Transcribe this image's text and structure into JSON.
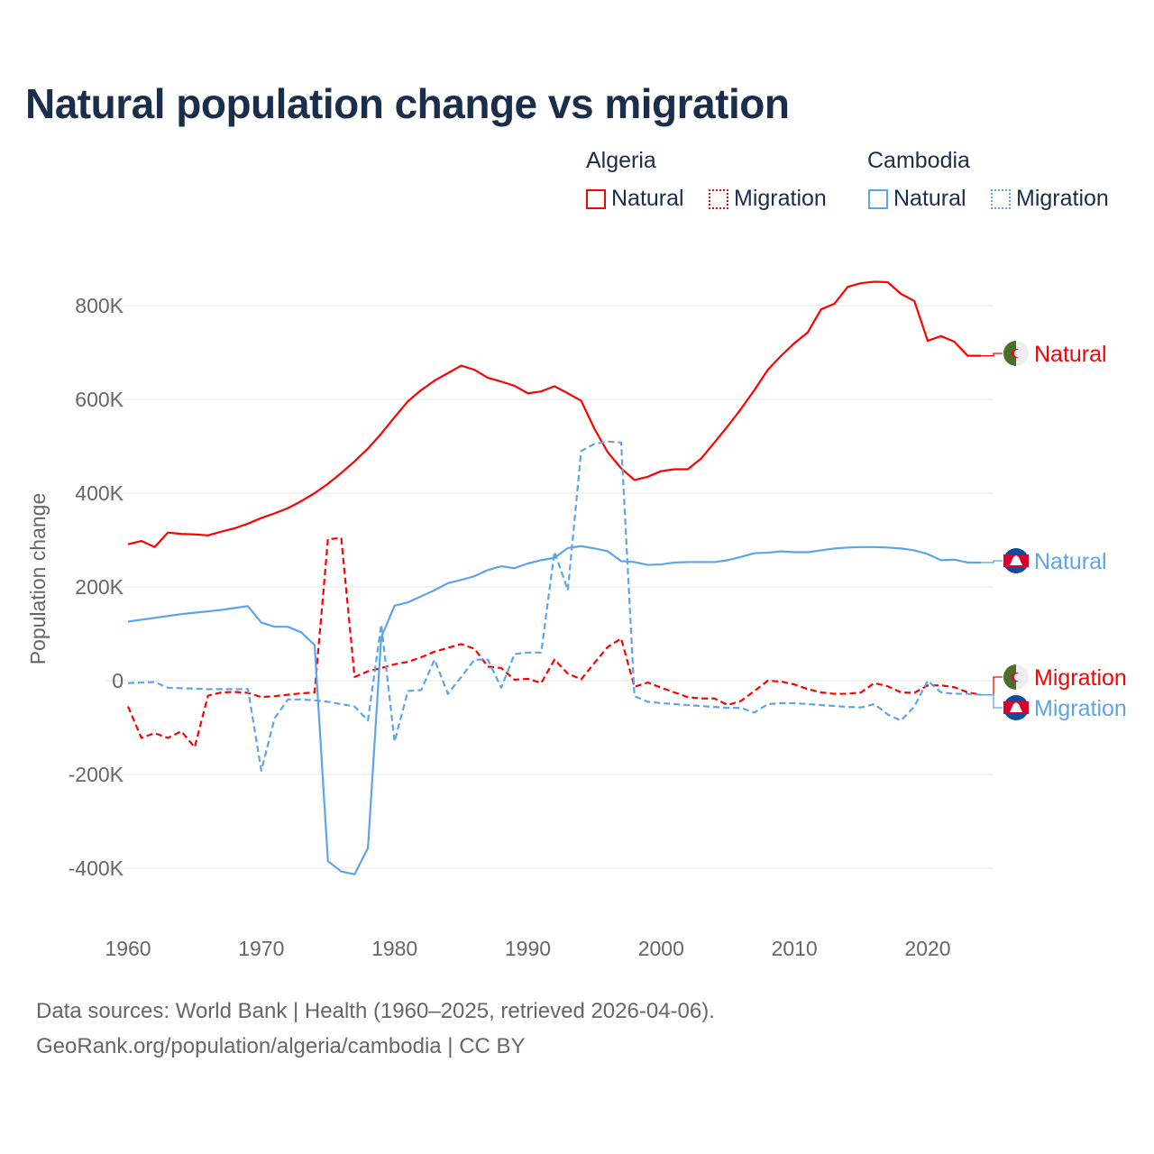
{
  "title": "Natural population change vs migration",
  "legend": {
    "groups": [
      {
        "name": "Algeria",
        "items": [
          {
            "label": "Natural",
            "style": "solid"
          },
          {
            "label": "Migration",
            "style": "dotted"
          }
        ],
        "color": "#ff0000"
      },
      {
        "name": "Cambodia",
        "items": [
          {
            "label": "Natural",
            "style": "solid"
          },
          {
            "label": "Migration",
            "style": "dotted"
          }
        ],
        "color": "#5ea4ea"
      }
    ]
  },
  "footer": {
    "line1": "Data sources: World Bank | Health (1960–2025, retrieved 2026-04-06).",
    "line2": "GeoRank.org/population/algeria/cambodia | CC BY"
  },
  "chart_data": {
    "type": "line",
    "title": "Natural population change vs migration",
    "xlabel": "",
    "ylabel": "Population change",
    "xlim": [
      1960,
      2025
    ],
    "ylim": [
      -500000,
      900000
    ],
    "xticks": [
      1960,
      1970,
      1980,
      1990,
      2000,
      2010,
      2020
    ],
    "xtick_labels": [
      "1960",
      "1970",
      "1980",
      "1990",
      "2000",
      "2010",
      "2020"
    ],
    "yticks": [
      800000,
      600000,
      400000,
      200000,
      0,
      -200000,
      -400000
    ],
    "ytick_labels": [
      "800K",
      "600K",
      "400K",
      "200K",
      "0",
      "-200K",
      "-400K"
    ],
    "grid": true,
    "x_start": 1960,
    "series": [
      {
        "name": "Algeria Natural",
        "end_label": "Natural",
        "color": "#ff0000",
        "dash": false,
        "values_k": [
          291,
          298,
          285,
          316,
          313,
          312,
          310,
          318,
          325,
          335,
          347,
          357,
          368,
          383,
          400,
          420,
          443,
          468,
          495,
          527,
          562,
          596,
          620,
          640,
          656,
          672,
          663,
          646,
          638,
          629,
          613,
          617,
          628,
          613,
          597,
          537,
          487,
          453,
          428,
          435,
          447,
          451,
          451,
          474,
          508,
          543,
          580,
          620,
          663,
          693,
          720,
          743,
          792,
          804,
          840,
          848,
          851,
          850,
          825,
          810,
          725,
          735,
          723,
          693,
          693
        ]
      },
      {
        "name": "Algeria Migration",
        "end_label": "Migration",
        "color": "#ff0000",
        "dash": true,
        "values_k": [
          -55,
          -122,
          -112,
          -122,
          -108,
          -142,
          -32,
          -25,
          -24,
          -26,
          -35,
          -33,
          -30,
          -27,
          -25,
          302,
          304,
          8,
          20,
          27,
          35,
          40,
          50,
          62,
          70,
          78,
          68,
          30,
          27,
          2,
          4,
          -5,
          45,
          15,
          3,
          38,
          72,
          90,
          -13,
          -4,
          -15,
          -25,
          -35,
          -38,
          -38,
          -52,
          -43,
          -22,
          0,
          -2,
          -8,
          -18,
          -25,
          -28,
          -28,
          -25,
          -5,
          -12,
          -25,
          -26,
          -10,
          -10,
          -14,
          -25,
          -30
        ]
      },
      {
        "name": "Cambodia Natural",
        "end_label": "Natural",
        "color": "#5ea4ea",
        "dash": false,
        "values_k": [
          126,
          130,
          134,
          138,
          142,
          145,
          148,
          151,
          155,
          159,
          124,
          115,
          115,
          103,
          76,
          -385,
          -407,
          -413,
          -357,
          93,
          160,
          167,
          180,
          193,
          208,
          215,
          223,
          236,
          244,
          240,
          250,
          257,
          262,
          283,
          287,
          282,
          276,
          255,
          253,
          247,
          248,
          252,
          253,
          253,
          253,
          257,
          264,
          272,
          273,
          276,
          274,
          274,
          278,
          282,
          284,
          285,
          285,
          284,
          282,
          278,
          270,
          257,
          258,
          252,
          252
        ]
      },
      {
        "name": "Cambodia Migration",
        "end_label": "Migration",
        "color": "#5ea4ea",
        "dash": true,
        "values_k": [
          -5,
          -4,
          -3,
          -15,
          -16,
          -17,
          -18,
          -18,
          -18,
          -18,
          -192,
          -80,
          -40,
          -40,
          -42,
          -45,
          -50,
          -55,
          -85,
          120,
          -130,
          -22,
          -20,
          45,
          -28,
          8,
          45,
          45,
          -15,
          57,
          60,
          60,
          275,
          193,
          490,
          505,
          510,
          508,
          -33,
          -45,
          -48,
          -50,
          -52,
          -54,
          -56,
          -58,
          -58,
          -68,
          -50,
          -48,
          -48,
          -50,
          -52,
          -54,
          -56,
          -57,
          -50,
          -72,
          -85,
          -55,
          0,
          -25,
          -28,
          -28,
          -30
        ]
      }
    ]
  }
}
